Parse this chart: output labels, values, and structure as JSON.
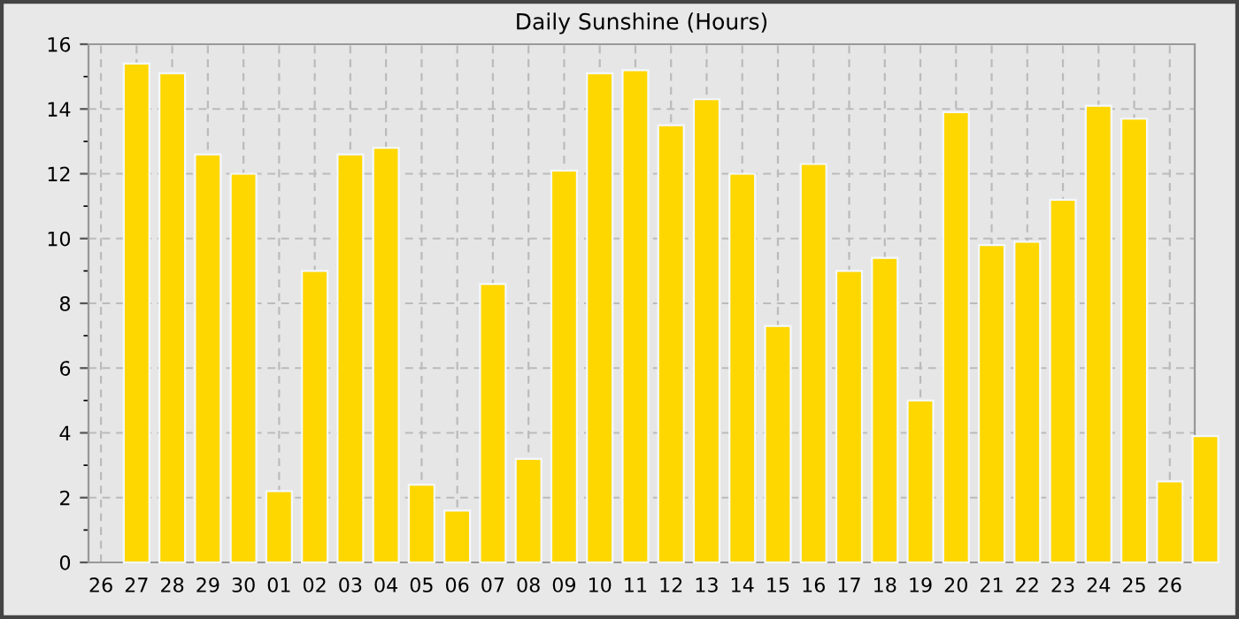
{
  "chart_data": {
    "type": "bar",
    "title": "Daily Sunshine (Hours)",
    "categories": [
      "26",
      "27",
      "28",
      "29",
      "30",
      "01",
      "02",
      "03",
      "04",
      "05",
      "06",
      "07",
      "08",
      "09",
      "10",
      "11",
      "12",
      "13",
      "14",
      "15",
      "16",
      "17",
      "18",
      "19",
      "20",
      "21",
      "22",
      "23",
      "24",
      "25",
      "26",
      null
    ],
    "values": [
      null,
      15.4,
      15.1,
      12.6,
      12.0,
      2.2,
      9.0,
      12.6,
      12.8,
      2.4,
      1.6,
      8.6,
      3.2,
      12.1,
      15.1,
      15.2,
      13.5,
      14.3,
      12.0,
      7.3,
      12.3,
      9.0,
      9.4,
      5.0,
      13.9,
      9.8,
      9.9,
      11.2,
      14.1,
      13.7,
      2.5,
      3.9
    ],
    "color": "#ffd700",
    "ylim": [
      0,
      16
    ],
    "yticks": [
      0,
      2,
      4,
      6,
      8,
      10,
      12,
      14,
      16
    ],
    "grid": true
  }
}
